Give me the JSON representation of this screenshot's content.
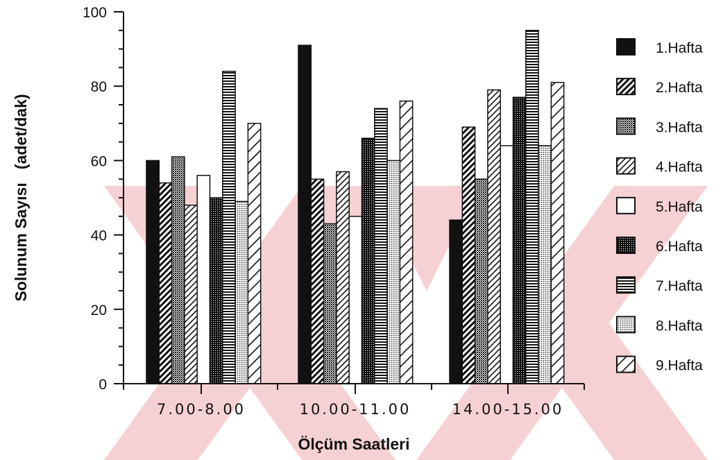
{
  "chart_data": {
    "type": "bar",
    "title": "",
    "xlabel": "Ölçüm Saatleri",
    "ylabel": "Solunum Sayısı (adet/dak)",
    "ylim": [
      0,
      100
    ],
    "yticks": [
      0,
      20,
      40,
      60,
      80,
      100
    ],
    "grid": false,
    "legend_position": "right",
    "categories": [
      "7.00-8.00",
      "10.00-11.00",
      "14.00-15.00"
    ],
    "series": [
      {
        "name": "1.Hafta",
        "pattern": "solid",
        "values": [
          60,
          91,
          44
        ]
      },
      {
        "name": "2.Hafta",
        "pattern": "dense-diag",
        "values": [
          54,
          55,
          69
        ]
      },
      {
        "name": "3.Hafta",
        "pattern": "dark-dots",
        "values": [
          61,
          43,
          55
        ]
      },
      {
        "name": "4.Hafta",
        "pattern": "light-diag",
        "values": [
          48,
          57,
          79
        ]
      },
      {
        "name": "5.Hafta",
        "pattern": "empty",
        "values": [
          56,
          45,
          64
        ]
      },
      {
        "name": "6.Hafta",
        "pattern": "darker-dots",
        "values": [
          50,
          66,
          77
        ]
      },
      {
        "name": "7.Hafta",
        "pattern": "horizontal",
        "values": [
          84,
          74,
          95
        ]
      },
      {
        "name": "8.Hafta",
        "pattern": "light-dots",
        "values": [
          49,
          60,
          64
        ]
      },
      {
        "name": "9.Hafta",
        "pattern": "sparse-diag",
        "values": [
          70,
          76,
          81
        ]
      }
    ]
  },
  "colors": {
    "ink": "#111111",
    "watermark": "#f5c9cc"
  },
  "watermark_icon": "red-x-watermark-icon"
}
